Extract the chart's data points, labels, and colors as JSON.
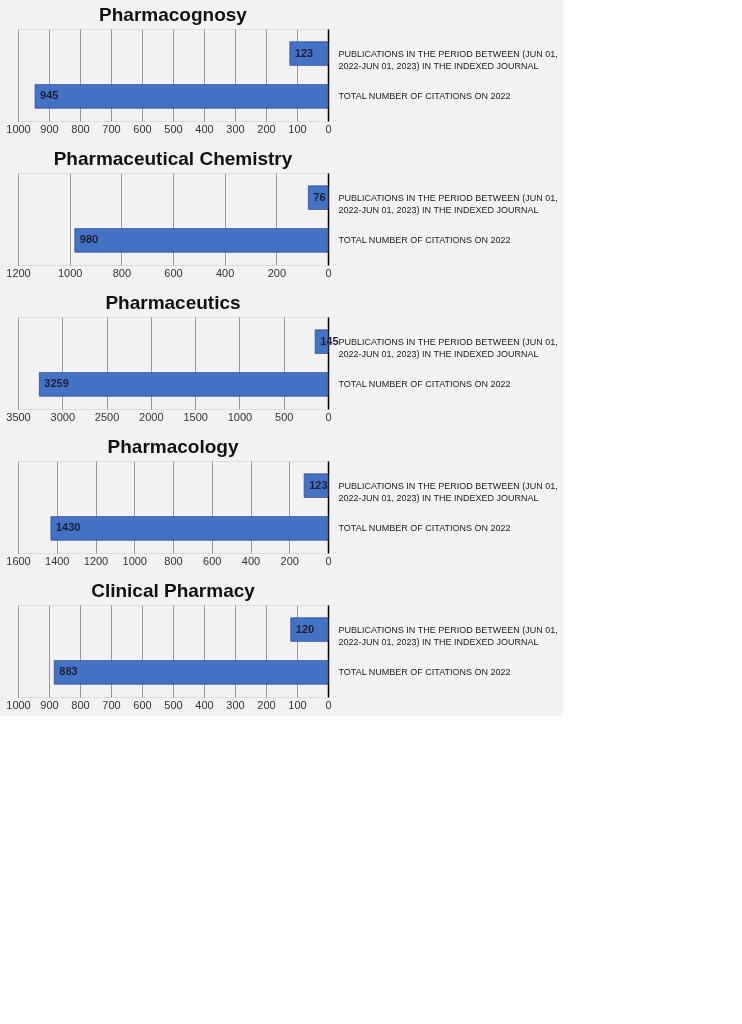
{
  "chart_data": [
    {
      "type": "bar",
      "orientation": "horizontal",
      "title": "Pharmacognosy",
      "categories": [
        "PUBLICATIONS IN THE PERIOD BETWEEN (JUN 01, 2022-JUN 01, 2023) IN THE INDEXED JOURNAL",
        "TOTAL NUMBER OF CITATIONS ON 2022"
      ],
      "values": [
        123,
        945
      ],
      "color": "#4472c4",
      "xlim": [
        1000,
        0
      ],
      "xticks": [
        1000,
        900,
        800,
        700,
        600,
        500,
        400,
        300,
        200,
        100,
        0
      ],
      "grid": "x",
      "data_labels": true
    },
    {
      "type": "bar",
      "orientation": "horizontal",
      "title": "Pharmaceutical Chemistry",
      "categories": [
        "PUBLICATIONS IN THE PERIOD BETWEEN (JUN 01, 2022-JUN 01, 2023) IN THE INDEXED JOURNAL",
        "TOTAL NUMBER OF CITATIONS ON 2022"
      ],
      "values": [
        76,
        980
      ],
      "color": "#4472c4",
      "xlim": [
        1200,
        0
      ],
      "xticks": [
        1200,
        1000,
        800,
        600,
        400,
        200,
        0
      ],
      "grid": "x",
      "data_labels": true
    },
    {
      "type": "bar",
      "orientation": "horizontal",
      "title": "Pharmaceutics",
      "categories": [
        "PUBLICATIONS IN THE PERIOD BETWEEN (JUN 01, 2022-JUN 01, 2023) IN THE INDEXED JOURNAL",
        "TOTAL NUMBER OF CITATIONS ON 2022"
      ],
      "values": [
        145,
        3259
      ],
      "color": "#4472c4",
      "xlim": [
        3500,
        0
      ],
      "xticks": [
        3500,
        3000,
        2500,
        2000,
        1500,
        1000,
        500,
        0
      ],
      "grid": "x",
      "data_labels": true
    },
    {
      "type": "bar",
      "orientation": "horizontal",
      "title": "Pharmacology",
      "categories": [
        "PUBLICATIONS IN THE PERIOD BETWEEN (JUN 01, 2022-JUN 01, 2023) IN THE INDEXED JOURNAL",
        "TOTAL NUMBER OF CITATIONS ON 2022"
      ],
      "values": [
        123,
        1430
      ],
      "color": "#4472c4",
      "xlim": [
        1600,
        0
      ],
      "xticks": [
        1600,
        1400,
        1200,
        1000,
        800,
        600,
        400,
        200,
        0
      ],
      "grid": "x",
      "data_labels": true
    },
    {
      "type": "bar",
      "orientation": "horizontal",
      "title": "Clinical Pharmacy",
      "categories": [
        "PUBLICATIONS IN THE PERIOD BETWEEN (JUN 01, 2022-JUN 01, 2023) IN THE INDEXED JOURNAL",
        "TOTAL NUMBER OF CITATIONS ON 2022"
      ],
      "values": [
        120,
        883
      ],
      "color": "#4472c4",
      "xlim": [
        1000,
        0
      ],
      "xticks": [
        1000,
        900,
        800,
        700,
        600,
        500,
        400,
        300,
        200,
        100,
        0
      ],
      "grid": "x",
      "data_labels": true
    }
  ]
}
